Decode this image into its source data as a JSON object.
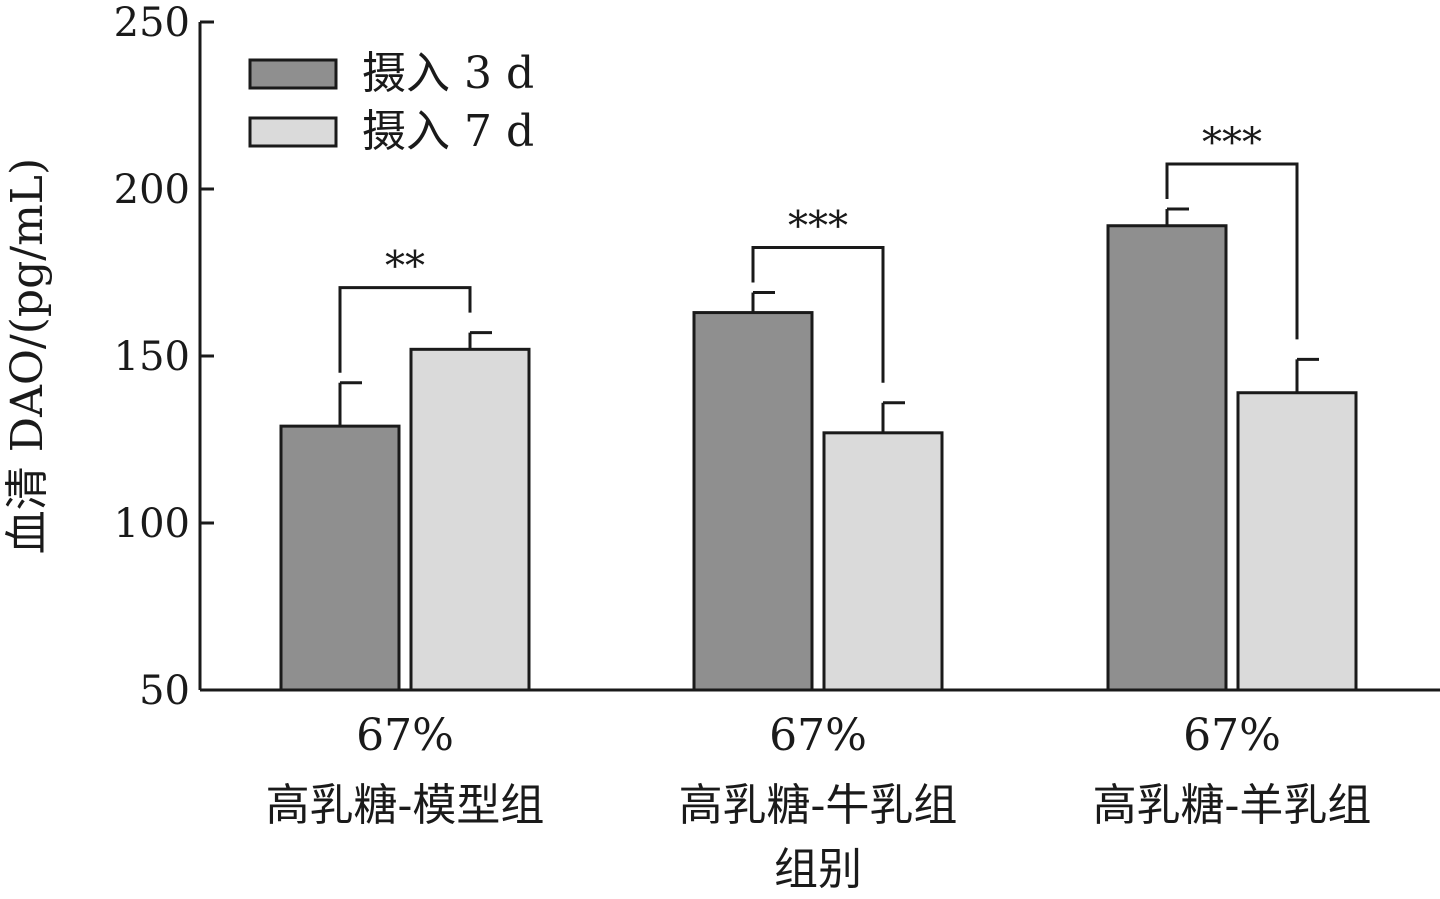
{
  "chart_data": {
    "type": "bar",
    "ylabel": "血清 DAO/(pg/mL)",
    "xlabel": "组别",
    "ylim": [
      50,
      250
    ],
    "yticks": [
      "50",
      "100",
      "150",
      "200",
      "250"
    ],
    "categories": [
      {
        "line1": "67%",
        "line2": "高乳糖-模型组"
      },
      {
        "line1": "67%",
        "line2": "高乳糖-牛乳组"
      },
      {
        "line1": "67%",
        "line2": "高乳糖-羊乳组"
      }
    ],
    "series": [
      {
        "name": "摄入 3 d",
        "color": "#8f8f8f",
        "values": [
          129,
          163,
          189
        ],
        "errors": [
          13,
          6,
          5
        ]
      },
      {
        "name": "摄入 7 d",
        "color": "#dadada",
        "values": [
          152,
          127,
          139
        ],
        "errors": [
          5,
          9,
          10
        ]
      }
    ],
    "significance": [
      "**",
      "***",
      "***"
    ],
    "legend_position": "top-left",
    "grid": false
  }
}
